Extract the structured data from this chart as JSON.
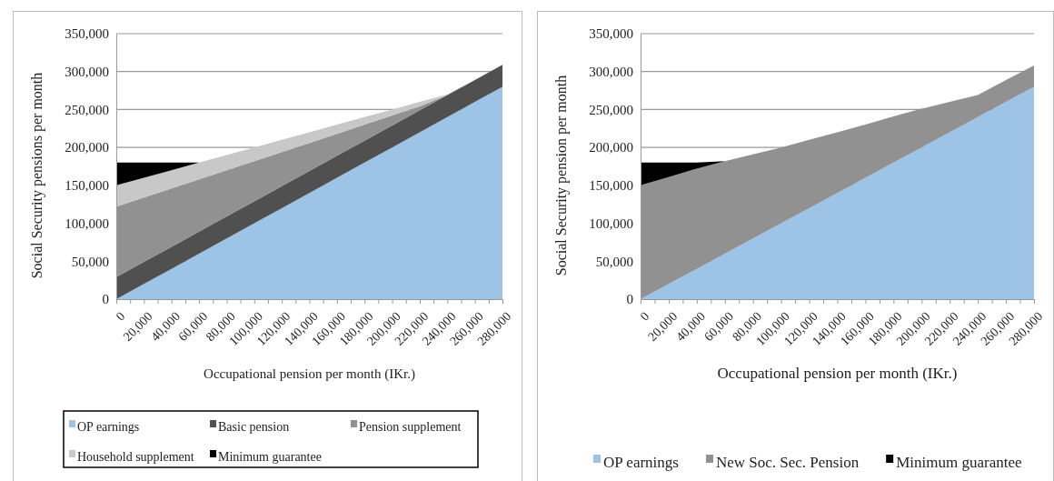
{
  "chart_data": [
    {
      "type": "area",
      "stacked": true,
      "xlabel": "Occupational pension per month (IKr.)",
      "ylabel": "Social Security pensions per month",
      "x": [
        0,
        20000,
        40000,
        60000,
        80000,
        100000,
        120000,
        140000,
        160000,
        180000,
        200000,
        220000,
        240000,
        260000,
        280000
      ],
      "xlim": [
        0,
        280000
      ],
      "xticks": [
        0,
        {
          "value": 10000,
          "label": null
        },
        {
          "value": 20000,
          "label": "20,000"
        },
        {
          "value": 30000,
          "label": null
        },
        {
          "value": 40000,
          "label": "40,000"
        },
        {
          "value": 50000,
          "label": null
        },
        {
          "value": 60000,
          "label": "60,000"
        },
        {
          "value": 70000,
          "label": null
        },
        {
          "value": 80000,
          "label": "80,000"
        },
        {
          "value": 90000,
          "label": null
        },
        {
          "value": 100000,
          "label": "100,000"
        },
        {
          "value": 110000,
          "label": null
        },
        {
          "value": 120000,
          "label": "120,000"
        },
        {
          "value": 130000,
          "label": null
        },
        {
          "value": 140000,
          "label": "140,000"
        },
        {
          "value": 150000,
          "label": null
        },
        {
          "value": 160000,
          "label": "160,000"
        },
        {
          "value": 170000,
          "label": null
        },
        {
          "value": 180000,
          "label": "180,000"
        },
        {
          "value": 190000,
          "label": null
        },
        {
          "value": 200000,
          "label": "200,000"
        },
        {
          "value": 210000,
          "label": null
        },
        {
          "value": 220000,
          "label": "220,000"
        },
        {
          "value": 230000,
          "label": null
        },
        {
          "value": 240000,
          "label": "240,000"
        },
        {
          "value": 250000,
          "label": null
        },
        {
          "value": 260000,
          "label": "260,000"
        },
        {
          "value": 270000,
          "label": null
        },
        {
          "value": 280000,
          "label": "280,000"
        }
      ],
      "ylim": [
        0,
        350000
      ],
      "yticks": [
        0,
        {
          "value": 50000,
          "label": "50,000"
        },
        {
          "value": 100000,
          "label": "100,000"
        },
        {
          "value": 150000,
          "label": "150,000"
        },
        {
          "value": 200000,
          "label": "200,000"
        },
        {
          "value": 250000,
          "label": "250,000"
        },
        {
          "value": 300000,
          "label": "300,000"
        },
        {
          "value": 350000,
          "label": "350,000"
        }
      ],
      "grid": "y",
      "legend": "bottom",
      "series": [
        {
          "name": "OP earnings",
          "color": "#9dc3e6",
          "values": [
            0,
            20000,
            40000,
            60000,
            80000,
            100000,
            120000,
            140000,
            160000,
            180000,
            200000,
            220000,
            240000,
            260000,
            280000
          ]
        },
        {
          "name": "Basic pension",
          "color": "#505050",
          "values": [
            29000,
            29000,
            29000,
            29000,
            29000,
            29000,
            29000,
            29000,
            29000,
            29000,
            29000,
            29000,
            29000,
            29000,
            29000
          ]
        },
        {
          "name": "Pension supplement",
          "color": "#919191",
          "values": [
            93000,
            85000,
            77000,
            69000,
            61000,
            53000,
            45000,
            37000,
            29000,
            21000,
            13000,
            5000,
            0,
            0,
            0
          ]
        },
        {
          "name": "Household supplement",
          "color": "#c8c8c8",
          "values": [
            28000,
            26000,
            24000,
            22000,
            20000,
            18000,
            16000,
            14000,
            12000,
            10000,
            8000,
            6000,
            1000,
            0,
            0
          ]
        },
        {
          "name": "Minimum guarantee",
          "color": "#000000",
          "values": [
            30000,
            20000,
            10000,
            0,
            0,
            0,
            0,
            0,
            0,
            0,
            0,
            0,
            0,
            0,
            0
          ]
        }
      ]
    },
    {
      "type": "area",
      "stacked": true,
      "xlabel": "Occupational pension per month (IKr.)",
      "ylabel": "Social Security pension per month",
      "x": [
        0,
        20000,
        40000,
        60000,
        80000,
        100000,
        120000,
        140000,
        160000,
        180000,
        200000,
        220000,
        240000,
        260000,
        280000
      ],
      "xlim": [
        0,
        280000
      ],
      "xticks": [
        0,
        {
          "value": 10000,
          "label": null
        },
        {
          "value": 20000,
          "label": "20,000"
        },
        {
          "value": 30000,
          "label": null
        },
        {
          "value": 40000,
          "label": "40,000"
        },
        {
          "value": 50000,
          "label": null
        },
        {
          "value": 60000,
          "label": "60,000"
        },
        {
          "value": 70000,
          "label": null
        },
        {
          "value": 80000,
          "label": "80,000"
        },
        {
          "value": 90000,
          "label": null
        },
        {
          "value": 100000,
          "label": "100,000"
        },
        {
          "value": 110000,
          "label": null
        },
        {
          "value": 120000,
          "label": "120,000"
        },
        {
          "value": 130000,
          "label": null
        },
        {
          "value": 140000,
          "label": "140,000"
        },
        {
          "value": 150000,
          "label": null
        },
        {
          "value": 160000,
          "label": "160,000"
        },
        {
          "value": 170000,
          "label": null
        },
        {
          "value": 180000,
          "label": "180,000"
        },
        {
          "value": 190000,
          "label": null
        },
        {
          "value": 200000,
          "label": "200,000"
        },
        {
          "value": 210000,
          "label": null
        },
        {
          "value": 220000,
          "label": "220,000"
        },
        {
          "value": 230000,
          "label": null
        },
        {
          "value": 240000,
          "label": "240,000"
        },
        {
          "value": 250000,
          "label": null
        },
        {
          "value": 260000,
          "label": "260,000"
        },
        {
          "value": 270000,
          "label": null
        },
        {
          "value": 280000,
          "label": "280,000"
        }
      ],
      "ylim": [
        0,
        350000
      ],
      "yticks": [
        0,
        {
          "value": 50000,
          "label": "50,000"
        },
        {
          "value": 100000,
          "label": "100,000"
        },
        {
          "value": 150000,
          "label": "150,000"
        },
        {
          "value": 200000,
          "label": "200,000"
        },
        {
          "value": 250000,
          "label": "250,000"
        },
        {
          "value": 300000,
          "label": "300,000"
        },
        {
          "value": 350000,
          "label": "350,000"
        }
      ],
      "grid": "y",
      "legend": "bottom",
      "series": [
        {
          "name": "OP earnings",
          "color": "#9dc3e6",
          "values": [
            0,
            20000,
            40000,
            60000,
            80000,
            100000,
            120000,
            140000,
            160000,
            180000,
            200000,
            220000,
            240000,
            260000,
            280000
          ]
        },
        {
          "name": "New Soc. Sec. Pension",
          "color": "#919191",
          "values": [
            150000,
            141000,
            132000,
            122000,
            111000,
            100000,
            90000,
            80000,
            70000,
            61000,
            51000,
            40000,
            29000,
            29000,
            28000
          ]
        },
        {
          "name": "Minimum guarantee",
          "color": "#000000",
          "values": [
            30000,
            19000,
            8000,
            0,
            0,
            0,
            0,
            0,
            0,
            0,
            0,
            0,
            0,
            0,
            0
          ]
        }
      ]
    }
  ]
}
